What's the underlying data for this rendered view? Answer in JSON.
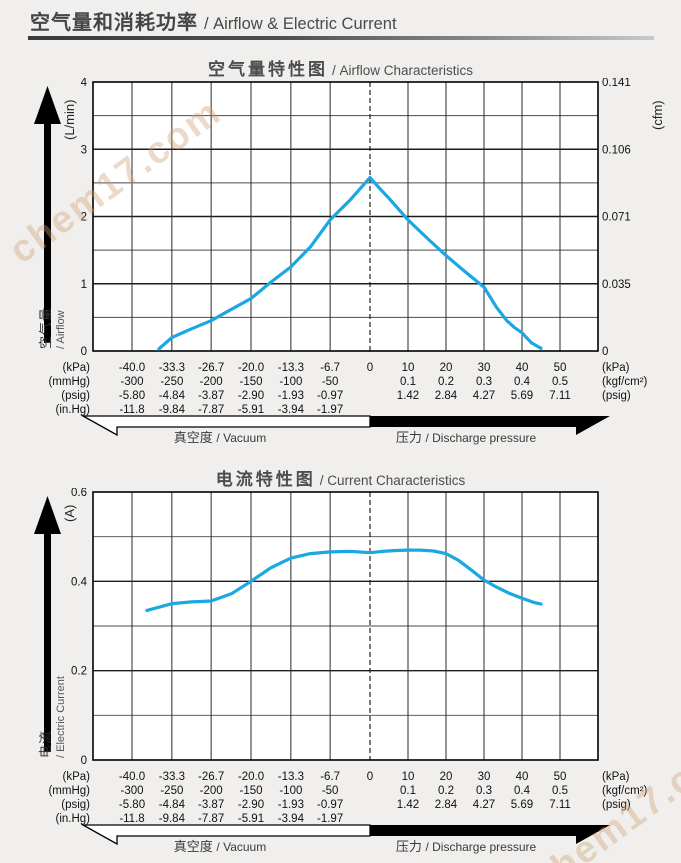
{
  "page": {
    "bg_color": "#f0efed",
    "curve_color": "#1aa7e2"
  },
  "header": {
    "title_zh": "空气量和消耗功率",
    "title_en": "/ Airflow & Electric Current"
  },
  "watermark": {
    "text": "chem17.com"
  },
  "x_axis": {
    "vacuum_tick_kpa": [
      -40,
      -33.3,
      -26.7,
      -20,
      -13.3,
      -6.7
    ],
    "pressure_tick_kpa": [
      10,
      20,
      30,
      40,
      50
    ],
    "unit_rows": [
      {
        "unit_left": "(kPa)",
        "vacuum": [
          "-40.0",
          "-33.3",
          "-26.7",
          "-20.0",
          "-13.3",
          "-6.7"
        ],
        "zero": "0",
        "pressure": [
          "10",
          "20",
          "30",
          "40",
          "50"
        ],
        "unit_right": "(kPa)"
      },
      {
        "unit_left": "(mmHg)",
        "vacuum": [
          "-300",
          "-250",
          "-200",
          "-150",
          "-100",
          "-50"
        ],
        "zero": "",
        "pressure": [
          "0.1",
          "0.2",
          "0.3",
          "0.4",
          "0.5"
        ],
        "unit_right": "(kgf/cm²)"
      },
      {
        "unit_left": "(psig)",
        "vacuum": [
          "-5.80",
          "-4.84",
          "-3.87",
          "-2.90",
          "-1.93",
          "-0.97"
        ],
        "zero": "",
        "pressure": [
          "1.42",
          "2.84",
          "4.27",
          "5.69",
          "7.11"
        ],
        "unit_right": "(psig)"
      },
      {
        "unit_left": "(in.Hg)",
        "vacuum": [
          "-11.8",
          "-9.84",
          "-7.87",
          "-5.91",
          "-3.94",
          "-1.97"
        ],
        "zero": "",
        "pressure": [],
        "unit_right": ""
      }
    ],
    "vacuum_arrow_zh": "真空度",
    "vacuum_arrow_en": "/ Vacuum",
    "pressure_arrow_zh": "压力",
    "pressure_arrow_en": "/ Discharge pressure"
  },
  "chart_data": [
    {
      "type": "line",
      "title_zh": "空气量特性图",
      "title_en": "/ Airflow Characteristics",
      "ylabel_zh": "空气量",
      "ylabel_en": "/ Airflow",
      "y_left_unit": "(L/min)",
      "y_left_ticks": [
        "4",
        "3",
        "2",
        "1",
        "0"
      ],
      "y_right_unit": "(cfm)",
      "y_right_ticks": [
        "0.141",
        "0.106",
        "0.071",
        "0.035",
        "0"
      ],
      "ylim": [
        0,
        4
      ],
      "y_minor_step": 0.5,
      "y_major_step": 1,
      "x_ticks_kpa": [
        -40,
        -33.3,
        -26.7,
        -20,
        -13.3,
        -6.7,
        0,
        10,
        20,
        30,
        40,
        50
      ],
      "grid": true,
      "zero_line_dashed": true,
      "series": [
        {
          "name": "airflow-L-per-min",
          "color": "#1aa7e2",
          "points_kpa_value": [
            [
              -35.5,
              0.03
            ],
            [
              -33.3,
              0.2
            ],
            [
              -30,
              0.33
            ],
            [
              -26.7,
              0.45
            ],
            [
              -23.3,
              0.62
            ],
            [
              -20,
              0.78
            ],
            [
              -16.7,
              1.02
            ],
            [
              -13.3,
              1.25
            ],
            [
              -10,
              1.55
            ],
            [
              -6.7,
              1.95
            ],
            [
              -3.3,
              2.25
            ],
            [
              0,
              2.58
            ],
            [
              2,
              2.45
            ],
            [
              5,
              2.27
            ],
            [
              10,
              1.95
            ],
            [
              15,
              1.68
            ],
            [
              20,
              1.42
            ],
            [
              25,
              1.18
            ],
            [
              30,
              0.95
            ],
            [
              33.3,
              0.65
            ],
            [
              36,
              0.45
            ],
            [
              38,
              0.35
            ],
            [
              40,
              0.27
            ],
            [
              42.5,
              0.12
            ],
            [
              45,
              0.04
            ]
          ]
        }
      ]
    },
    {
      "type": "line",
      "title_zh": "电流特性图",
      "title_en": "/ Current Characteristics",
      "ylabel_zh": "电流",
      "ylabel_en": "/ Electric Current",
      "y_left_unit": "(A)",
      "y_left_ticks": [
        "0.6",
        "0.4",
        "0.2",
        "0"
      ],
      "ylim": [
        0,
        0.6
      ],
      "y_minor_step": 0.1,
      "y_major_step": 0.2,
      "x_ticks_kpa": [
        -40,
        -33.3,
        -26.7,
        -20,
        -13.3,
        -6.7,
        0,
        10,
        20,
        30,
        40,
        50
      ],
      "grid": true,
      "zero_line_dashed": true,
      "series": [
        {
          "name": "electric-current-A",
          "color": "#1aa7e2",
          "points_kpa_value": [
            [
              -37.5,
              0.335
            ],
            [
              -33.3,
              0.35
            ],
            [
              -30,
              0.354
            ],
            [
              -26.7,
              0.356
            ],
            [
              -23.3,
              0.372
            ],
            [
              -20,
              0.4
            ],
            [
              -16.7,
              0.43
            ],
            [
              -13.3,
              0.452
            ],
            [
              -10,
              0.462
            ],
            [
              -6.7,
              0.466
            ],
            [
              -3.3,
              0.467
            ],
            [
              0,
              0.464
            ],
            [
              3.3,
              0.467
            ],
            [
              6.7,
              0.469
            ],
            [
              10,
              0.47
            ],
            [
              13.3,
              0.47
            ],
            [
              16.7,
              0.468
            ],
            [
              20,
              0.462
            ],
            [
              23.3,
              0.447
            ],
            [
              26.7,
              0.425
            ],
            [
              30,
              0.403
            ],
            [
              33.3,
              0.387
            ],
            [
              36.7,
              0.373
            ],
            [
              40,
              0.362
            ],
            [
              43,
              0.353
            ],
            [
              45,
              0.349
            ]
          ]
        }
      ]
    }
  ]
}
